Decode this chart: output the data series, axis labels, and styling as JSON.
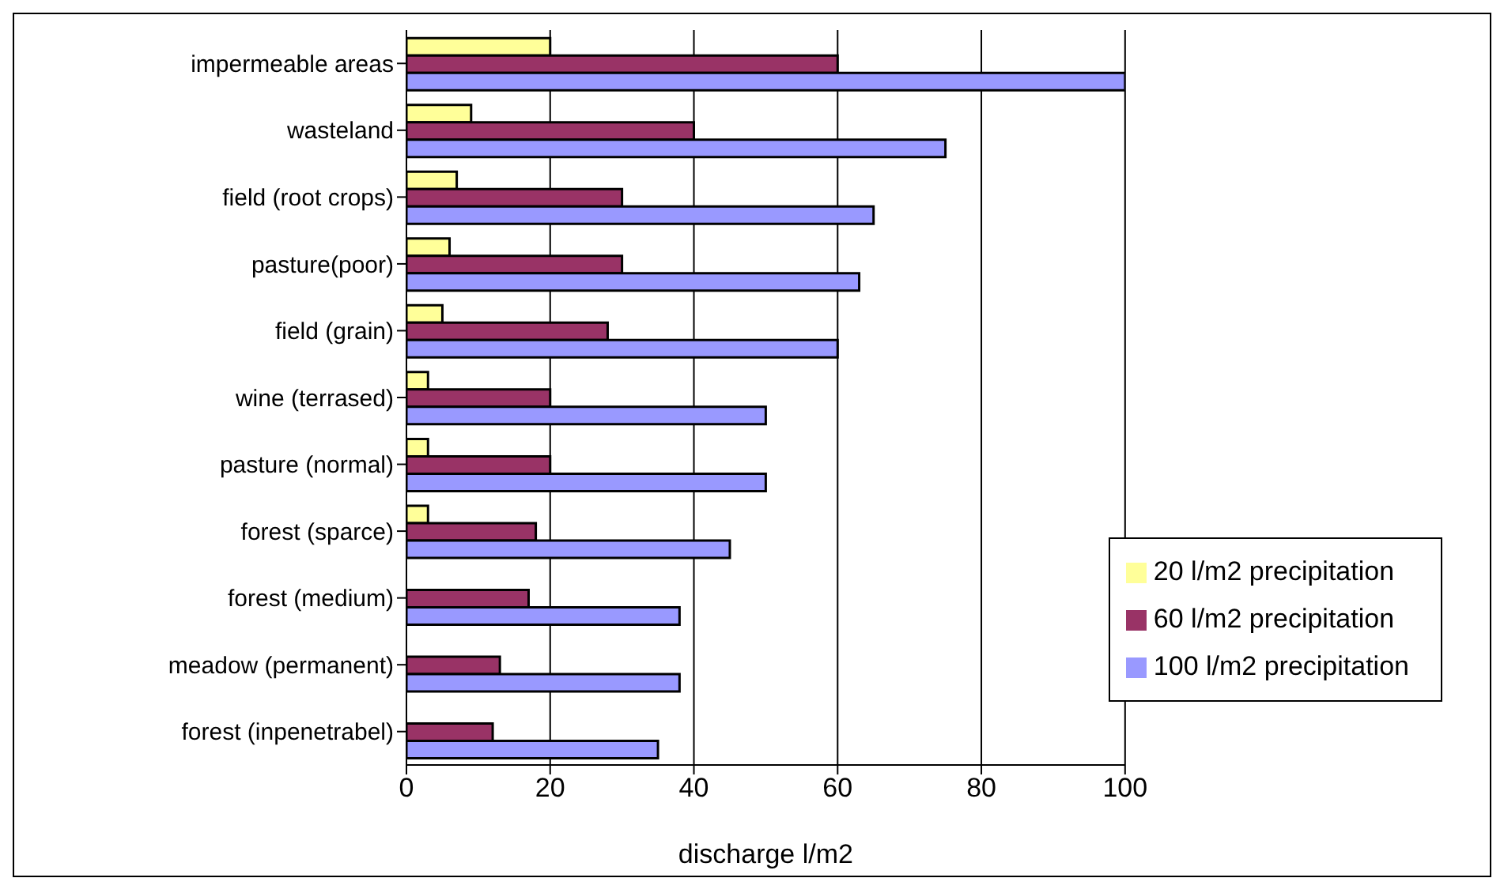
{
  "chart_data": {
    "type": "bar",
    "orientation": "horizontal",
    "xlabel": "discharge l/m2",
    "categories": [
      "impermeable areas",
      "wasteland",
      "field (root crops)",
      "pasture(poor)",
      "field (grain)",
      "wine (terrased)",
      "pasture (normal)",
      "forest (sparce)",
      "forest (medium)",
      "meadow (permanent)",
      "forest (inpenetrabel)"
    ],
    "series": [
      {
        "name": "20 l/m2 precipitation",
        "color": "#ffff99",
        "values": [
          20,
          9,
          7,
          6,
          5,
          3,
          3,
          3,
          null,
          null,
          null
        ]
      },
      {
        "name": "60 l/m2 precipitation",
        "color": "#993366",
        "values": [
          60,
          40,
          30,
          30,
          28,
          20,
          20,
          18,
          17,
          13,
          12
        ]
      },
      {
        "name": "100 l/m2 precipitation",
        "color": "#9999ff",
        "values": [
          100,
          75,
          65,
          63,
          60,
          50,
          50,
          45,
          38,
          38,
          35
        ]
      }
    ],
    "xlim": [
      0,
      100
    ],
    "xticks": [
      0,
      20,
      40,
      60,
      80,
      100
    ],
    "grid": "x",
    "legend": "bottom right"
  }
}
